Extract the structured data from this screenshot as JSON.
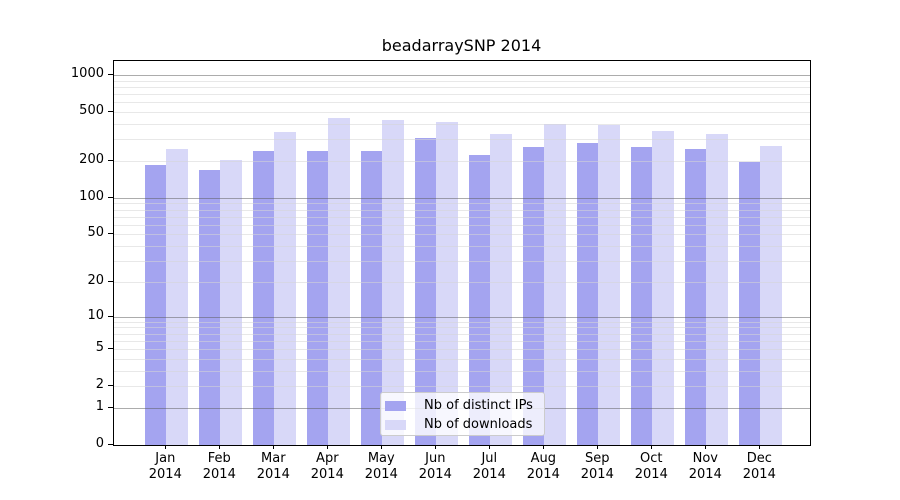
{
  "chart_data": {
    "type": "bar",
    "title": "beadarraySNP 2014",
    "categories": [
      "Jan",
      "Feb",
      "Mar",
      "Apr",
      "May",
      "Jun",
      "Jul",
      "Aug",
      "Sep",
      "Oct",
      "Nov",
      "Dec"
    ],
    "year_label": "2014",
    "series": [
      {
        "name": "Nb of distinct IPs",
        "color": "#a4a4f0",
        "values": [
          185,
          168,
          240,
          243,
          240,
          307,
          225,
          259,
          283,
          259,
          251,
          196
        ]
      },
      {
        "name": "Nb of downloads",
        "color": "#d8d8f8",
        "values": [
          249,
          203,
          343,
          449,
          430,
          416,
          329,
          401,
          391,
          350,
          335,
          264
        ]
      }
    ],
    "yticks": [
      0,
      1,
      2,
      5,
      10,
      20,
      50,
      100,
      200,
      500,
      1000
    ],
    "y_scale": "log10(v+1)",
    "grid": true,
    "legend_position": "lower center",
    "xlabel": "",
    "ylabel": ""
  }
}
